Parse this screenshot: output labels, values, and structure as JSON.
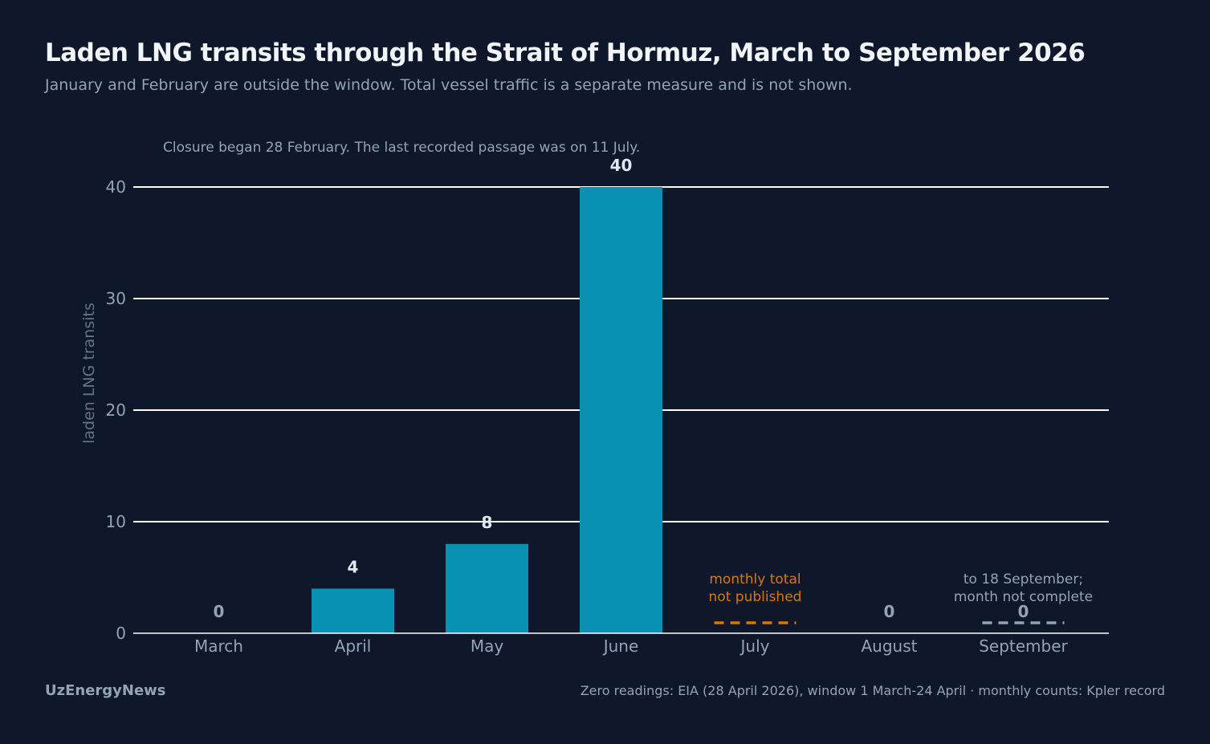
{
  "header": {
    "title": "Laden LNG transits through the Strait of Hormuz, March to September 2026",
    "subtitle": "January and February are outside the window. Total vessel traffic is a separate measure and is not shown."
  },
  "chart_data": {
    "type": "bar",
    "annotation": "Closure began 28 February. The last recorded passage was on 11 July.",
    "ylabel": "laden LNG transits",
    "xlabel": "",
    "ylim": [
      0,
      40
    ],
    "yticks": [
      0,
      10,
      20,
      30,
      40
    ],
    "grid": true,
    "categories": [
      "March",
      "April",
      "May",
      "June",
      "July",
      "August",
      "September"
    ],
    "values": [
      0,
      4,
      8,
      40,
      null,
      0,
      0
    ],
    "value_labels": [
      "0",
      "4",
      "8",
      "40",
      "",
      "0",
      "0"
    ],
    "notes": [
      null,
      null,
      null,
      null,
      {
        "lines": [
          "monthly total",
          "not published"
        ],
        "color": "#d97706"
      },
      null,
      {
        "lines": [
          "to 18 September;",
          "month not complete"
        ],
        "color": "#94a3b8"
      }
    ],
    "colors": {
      "bar": "#0891b2",
      "grid": "#ffffff",
      "axis_text": "#94a3b8",
      "value_label": "#e2e8f0",
      "not_published": "#d97706",
      "incomplete": "#94a3b8"
    }
  },
  "footer": {
    "brand": "UzEnergyNews",
    "source": "Zero readings: EIA (28 April 2026), window 1 March-24 April · monthly counts: Kpler record"
  }
}
